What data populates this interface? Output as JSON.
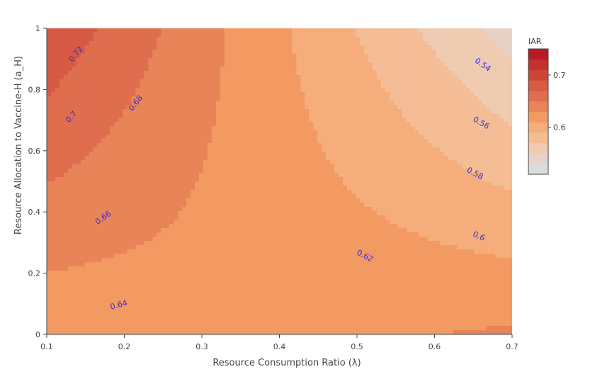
{
  "chart_data": {
    "type": "contour",
    "xlabel": "Resource Consumption Ratio (λ)",
    "ylabel": "Resource Allocation to Vaccine-H (a_H)",
    "xlim": [
      0.1,
      0.7
    ],
    "ylim": [
      0,
      1
    ],
    "x_ticks": [
      "0.1",
      "0.2",
      "0.3",
      "0.4",
      "0.5",
      "0.6",
      "0.7"
    ],
    "y_ticks": [
      "0",
      "0.2",
      "0.4",
      "0.6",
      "0.8",
      "1"
    ],
    "z_min": 0.51,
    "z_max": 0.75,
    "contour_step": 0.02,
    "contour_labels": [
      "0.72",
      "0.7",
      "0.68",
      "0.66",
      "0.64",
      "0.62",
      "0.6",
      "0.58",
      "0.56",
      "0.54"
    ],
    "colorbar": {
      "title": "IAR",
      "tick_labels": [
        "0.7",
        "0.6"
      ],
      "tick_values": [
        0.7,
        0.6
      ],
      "colors": [
        "#dcdcdc",
        "#e6d2c6",
        "#eecbb1",
        "#f4bd96",
        "#f5ae7b",
        "#f29a62",
        "#e88458",
        "#df6e4f",
        "#d65a44",
        "#cc4538",
        "#c3302d",
        "#b81b25"
      ]
    },
    "grid": false
  }
}
